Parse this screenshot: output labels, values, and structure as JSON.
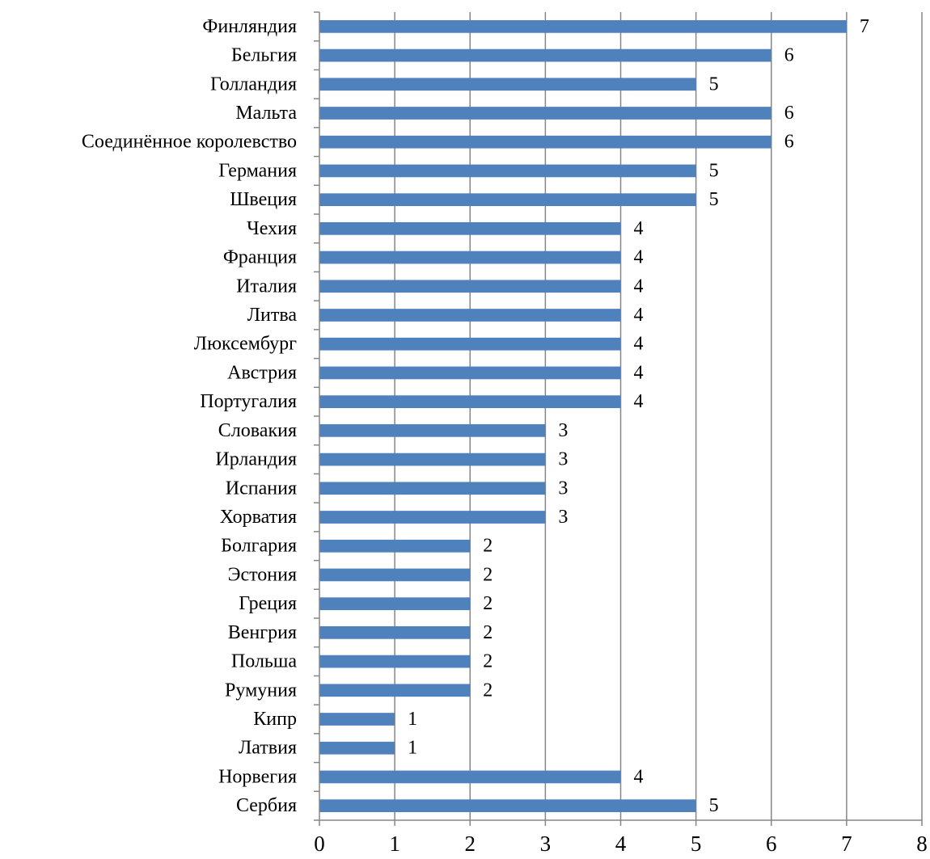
{
  "chart_data": {
    "type": "bar",
    "orientation": "horizontal",
    "categories": [
      "Финляндия",
      "Бельгия",
      "Голландия",
      "Мальта",
      "Соединённое королевство",
      "Германия",
      "Швеция",
      "Чехия",
      "Франция",
      "Италия",
      "Литва",
      "Люксембург",
      "Австрия",
      "Португалия",
      "Словакия",
      "Ирландия",
      "Испания",
      "Хорватия",
      "Болгария",
      "Эстония",
      "Греция",
      "Венгрия",
      "Польша",
      "Румуния",
      "Кипр",
      "Латвия",
      "Норвегия",
      "Сербия"
    ],
    "values": [
      7,
      6,
      5,
      6,
      6,
      5,
      5,
      4,
      4,
      4,
      4,
      4,
      4,
      4,
      3,
      3,
      3,
      3,
      2,
      2,
      2,
      2,
      2,
      2,
      1,
      1,
      4,
      5
    ],
    "data_labels": [
      "7",
      "6",
      "5",
      "6",
      "6",
      "5",
      "5",
      "4",
      "4",
      "4",
      "4",
      "4",
      "4",
      "4",
      "3",
      "3",
      "3",
      "3",
      "2",
      "2",
      "2",
      "2",
      "2",
      "2",
      "1",
      "1",
      "4",
      "5"
    ],
    "xlim": [
      0,
      8
    ],
    "xticks": [
      "0",
      "1",
      "2",
      "3",
      "4",
      "5",
      "6",
      "7",
      "8"
    ],
    "title": "",
    "xlabel": "",
    "ylabel": "",
    "grid": "vertical",
    "legend": "none",
    "colors": {
      "bar": "#4f81bd",
      "grid": "#868686",
      "axis": "#868686"
    }
  }
}
